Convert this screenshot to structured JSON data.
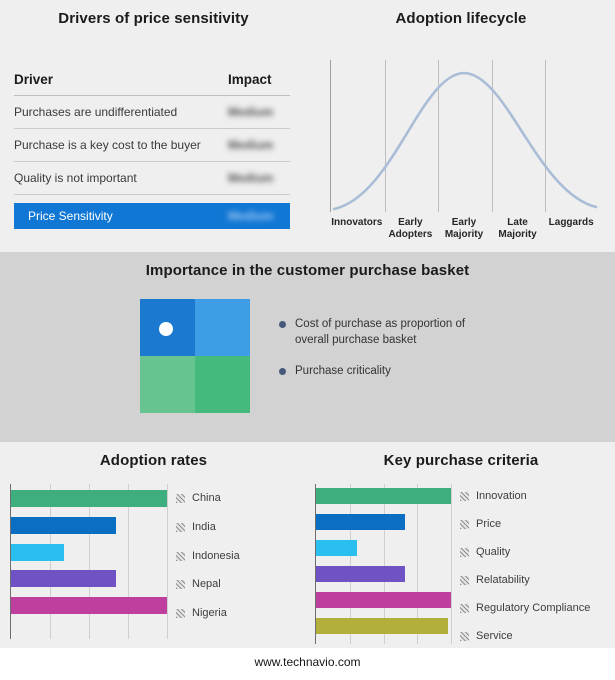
{
  "page": {
    "background": "#efefef",
    "band_background": "#d2d2d2",
    "footer_text": "www.technavio.com"
  },
  "basket": {
    "title": "Importance in the customer purchase basket",
    "bullets": [
      "Cost of purchase as proportion of overall purchase basket",
      "Purchase criticality"
    ],
    "quadrant_colors": {
      "top_left": "#1b7ad0",
      "top_right": "#3e9de4",
      "bottom_left": "#67c390",
      "bottom_right": "#46ba7d"
    },
    "marker_color": "#ffffff",
    "bullet_dot_color": "#44597c"
  },
  "chart_data": [
    {
      "type": "table",
      "title": "Drivers of price sensitivity",
      "columns": [
        "Driver",
        "Impact"
      ],
      "rows": [
        {
          "driver": "Purchases are undifferentiated",
          "impact": "Medium"
        },
        {
          "driver": "Purchase is a key cost to the buyer",
          "impact": "Medium"
        },
        {
          "driver": "Quality is not important",
          "impact": "Medium"
        }
      ],
      "highlight_row": {
        "label": "Price Sensitivity",
        "impact": "Medium",
        "background": "#1177d4"
      }
    },
    {
      "type": "line",
      "title": "Adoption lifecycle",
      "x_labels": [
        "Innovators",
        "Early Adopters",
        "Early Majority",
        "Late Majority",
        "Laggards"
      ],
      "curve": "bell-shaped adoption curve peaking at Early Majority",
      "line_color": "#aabdd6"
    },
    {
      "type": "bar",
      "orientation": "horizontal",
      "title": "Adoption rates",
      "categories": [
        "China",
        "India",
        "Indonesia",
        "Nepal",
        "Nigeria"
      ],
      "values": [
        100,
        67,
        34,
        67,
        100
      ],
      "xlim": [
        0,
        100
      ],
      "colors": [
        "#3fae7e",
        "#0a6fc2",
        "#29c0f0",
        "#6f53c4",
        "#bf3f9e"
      ],
      "grid": true,
      "legend_position": "right"
    },
    {
      "type": "bar",
      "orientation": "horizontal",
      "title": "Key purchase criteria",
      "categories": [
        "Innovation",
        "Price",
        "Quality",
        "Relatability",
        "Regulatory Compliance",
        "Service"
      ],
      "values": [
        100,
        66,
        30,
        66,
        100,
        98
      ],
      "xlim": [
        0,
        100
      ],
      "colors": [
        "#3fae7e",
        "#0a6fc2",
        "#29c0f0",
        "#6f53c4",
        "#bf3f9e",
        "#b3af3c"
      ],
      "grid": true,
      "legend_position": "right"
    }
  ]
}
